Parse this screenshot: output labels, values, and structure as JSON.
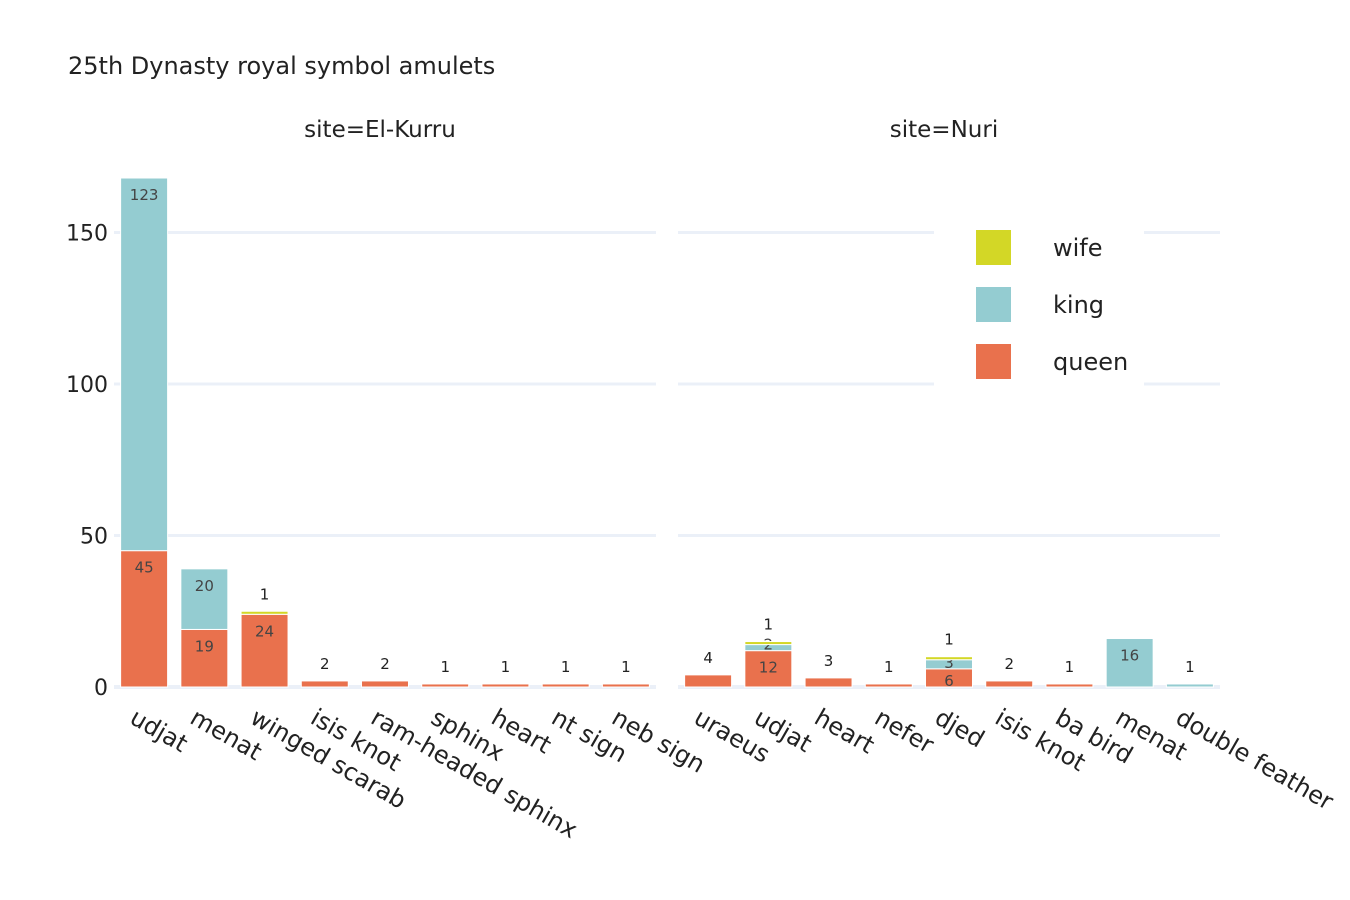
{
  "chart_data": {
    "type": "bar",
    "barmode": "stack",
    "title": "25th Dynasty royal symbol amulets",
    "facet_label": "site=",
    "yaxis": {
      "ylim": [
        0,
        168
      ],
      "ticks": [
        0,
        50,
        100,
        150
      ],
      "grid": true
    },
    "series_order": [
      "queen",
      "king",
      "wife"
    ],
    "legend": {
      "placement": "top-right",
      "entries": [
        {
          "name": "wife",
          "color": "#d3d726"
        },
        {
          "name": "king",
          "color": "#94ccd1"
        },
        {
          "name": "queen",
          "color": "#e9714d"
        }
      ]
    },
    "facets": [
      {
        "title": "site=El-Kurru",
        "categories": [
          "udjat",
          "menat",
          "winged scarab",
          "isis knot",
          "ram-headed sphinx",
          "sphinx",
          "heart",
          "nt sign",
          "neb sign"
        ],
        "series": [
          {
            "name": "queen",
            "values": [
              45,
              19,
              24,
              2,
              2,
              1,
              1,
              1,
              1
            ]
          },
          {
            "name": "king",
            "values": [
              123,
              20,
              0,
              0,
              0,
              0,
              0,
              0,
              0
            ]
          },
          {
            "name": "wife",
            "values": [
              0,
              0,
              1,
              0,
              0,
              0,
              0,
              0,
              0
            ]
          }
        ]
      },
      {
        "title": "site=Nuri",
        "categories": [
          "uraeus",
          "udjat",
          "heart",
          "nefer",
          "djed",
          "isis knot",
          "ba bird",
          "menat",
          "double feather"
        ],
        "series": [
          {
            "name": "queen",
            "values": [
              4,
              12,
              3,
              1,
              6,
              2,
              1,
              0,
              0
            ]
          },
          {
            "name": "king",
            "values": [
              0,
              2,
              0,
              0,
              3,
              0,
              0,
              16,
              1
            ]
          },
          {
            "name": "wife",
            "values": [
              0,
              1,
              0,
              0,
              1,
              0,
              0,
              0,
              0
            ]
          }
        ]
      }
    ]
  }
}
